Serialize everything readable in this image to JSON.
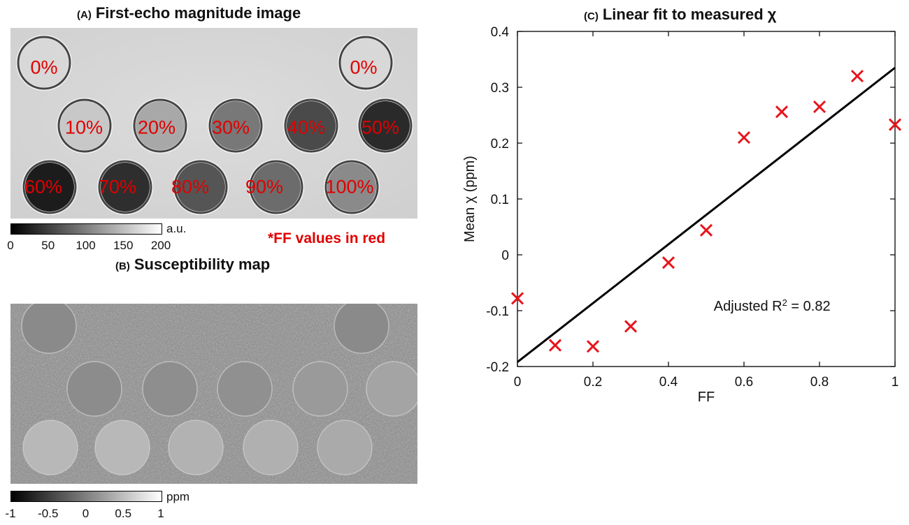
{
  "panel_a": {
    "letter": "(A)",
    "title": "First-echo magnitude image",
    "ff_labels": [
      "0%",
      "0%",
      "10%",
      "20%",
      "30%",
      "40%",
      "50%",
      "60%",
      "70%",
      "80%",
      "90%",
      "100%"
    ],
    "colorbar_unit": "a.u.",
    "colorbar_ticks": [
      "0",
      "50",
      "100",
      "150",
      "200"
    ],
    "note": "*FF values in red"
  },
  "panel_b": {
    "letter": "(B)",
    "title": "Susceptibility map",
    "colorbar_unit": "ppm",
    "colorbar_ticks": [
      "-1",
      "-0.5",
      "0",
      "0.5",
      "1"
    ]
  },
  "chart_data": {
    "type": "scatter",
    "letter": "(C)",
    "title": "Linear fit to measured χ",
    "xlabel": "FF",
    "ylabel": "Mean χ (ppm)",
    "xlim": [
      0,
      1
    ],
    "ylim": [
      -0.2,
      0.4
    ],
    "x_ticks": [
      "0",
      "0.2",
      "0.4",
      "0.6",
      "0.8",
      "1"
    ],
    "y_ticks": [
      "-0.2",
      "-0.1",
      "0",
      "0.1",
      "0.2",
      "0.3",
      "0.4"
    ],
    "series": [
      {
        "marker": "x",
        "color": "#e8141b",
        "x": [
          0,
          0.1,
          0.2,
          0.3,
          0.4,
          0.5,
          0.6,
          0.7,
          0.8,
          0.9,
          1.0
        ],
        "y": [
          -0.078,
          -0.162,
          -0.164,
          -0.128,
          -0.014,
          0.044,
          0.21,
          0.256,
          0.265,
          0.32,
          0.233
        ]
      }
    ],
    "fit_line": {
      "color": "#000000",
      "x": [
        0,
        1
      ],
      "y": [
        -0.192,
        0.335
      ]
    },
    "annotation": {
      "text_prefix": "Adjusted R",
      "superscript": "2",
      "text_suffix": " = 0.82"
    },
    "grid": false
  }
}
